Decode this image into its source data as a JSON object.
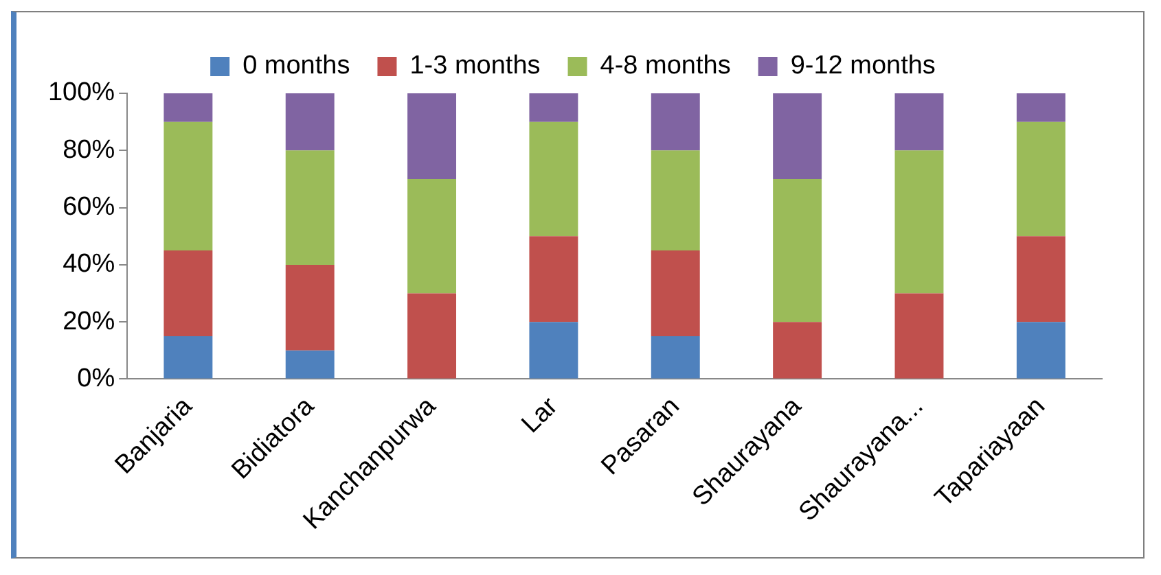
{
  "chart_data": {
    "type": "bar",
    "stacked": true,
    "categories": [
      "Banjaria",
      "Bidiatora",
      "Kanchanpurwa",
      "Lar",
      "Pasaran",
      "Shaurayana",
      "Shaurayana...",
      "Tapariayaan"
    ],
    "series": [
      {
        "name": "0 months",
        "color": "#4f81bd",
        "values": [
          15,
          10,
          0,
          20,
          15,
          0,
          0,
          20
        ]
      },
      {
        "name": "1-3 months",
        "color": "#c0504d",
        "values": [
          30,
          30,
          30,
          30,
          30,
          20,
          30,
          30
        ]
      },
      {
        "name": "4-8 months",
        "color": "#9bbb59",
        "values": [
          45,
          40,
          40,
          40,
          35,
          50,
          50,
          40
        ]
      },
      {
        "name": "9-12 months",
        "color": "#8064a2",
        "values": [
          10,
          20,
          30,
          10,
          20,
          30,
          20,
          10
        ]
      }
    ],
    "ylim": [
      0,
      100
    ],
    "yticks": [
      {
        "value": 0,
        "label": "0%"
      },
      {
        "value": 20,
        "label": "20%"
      },
      {
        "value": 40,
        "label": "40%"
      },
      {
        "value": 60,
        "label": "60%"
      },
      {
        "value": 80,
        "label": "80%"
      },
      {
        "value": 100,
        "label": "100%"
      }
    ],
    "grid": false,
    "legend": "top"
  }
}
